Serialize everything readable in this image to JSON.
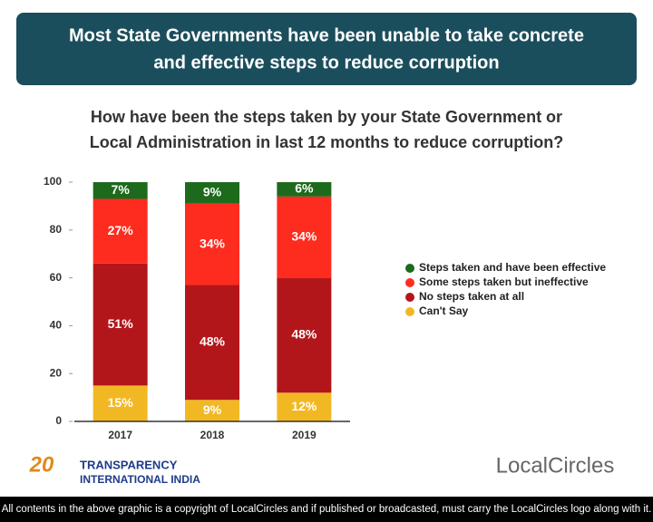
{
  "chart_data": {
    "type": "stacked_bar",
    "title": [
      "Most State Governments have been unable to take concrete",
      "and effective steps to reduce corruption"
    ],
    "subtitle": [
      "How have been the steps taken by your State Government or",
      "Local Administration in last 12 months to reduce corruption?"
    ],
    "categories": [
      "2017",
      "2018",
      "2019"
    ],
    "series": [
      {
        "name": "Can't Say",
        "color": "#f2b824",
        "values": [
          15,
          9,
          12
        ],
        "value_labels": [
          "15%",
          "9%",
          "12%"
        ]
      },
      {
        "name": "No steps taken at all",
        "color": "#b3161a",
        "values": [
          51,
          48,
          48
        ],
        "value_labels": [
          "51%",
          "48%",
          "48%"
        ]
      },
      {
        "name": "Some steps taken but ineffective",
        "color": "#fe2b1f",
        "values": [
          27,
          34,
          34
        ],
        "value_labels": [
          "27%",
          "34%",
          "34%"
        ]
      },
      {
        "name": "Steps taken and have been effective",
        "color": "#1d6a1d",
        "values": [
          7,
          9,
          6
        ],
        "value_labels": [
          "7%",
          "9%",
          "6%"
        ]
      }
    ],
    "ylim": [
      0,
      100
    ],
    "yticks": [
      0,
      20,
      40,
      60,
      80,
      100
    ],
    "grid": false,
    "legend": "right"
  },
  "branding": {
    "partner": [
      "TRANSPARENCY",
      "INTERNATIONAL INDIA"
    ],
    "partner_badge": "20",
    "logo": "LocalCircles",
    "footer": "All contents in the above graphic is a copyright of LocalCircles and if published or broadcasted, must carry the LocalCircles logo along with it."
  }
}
